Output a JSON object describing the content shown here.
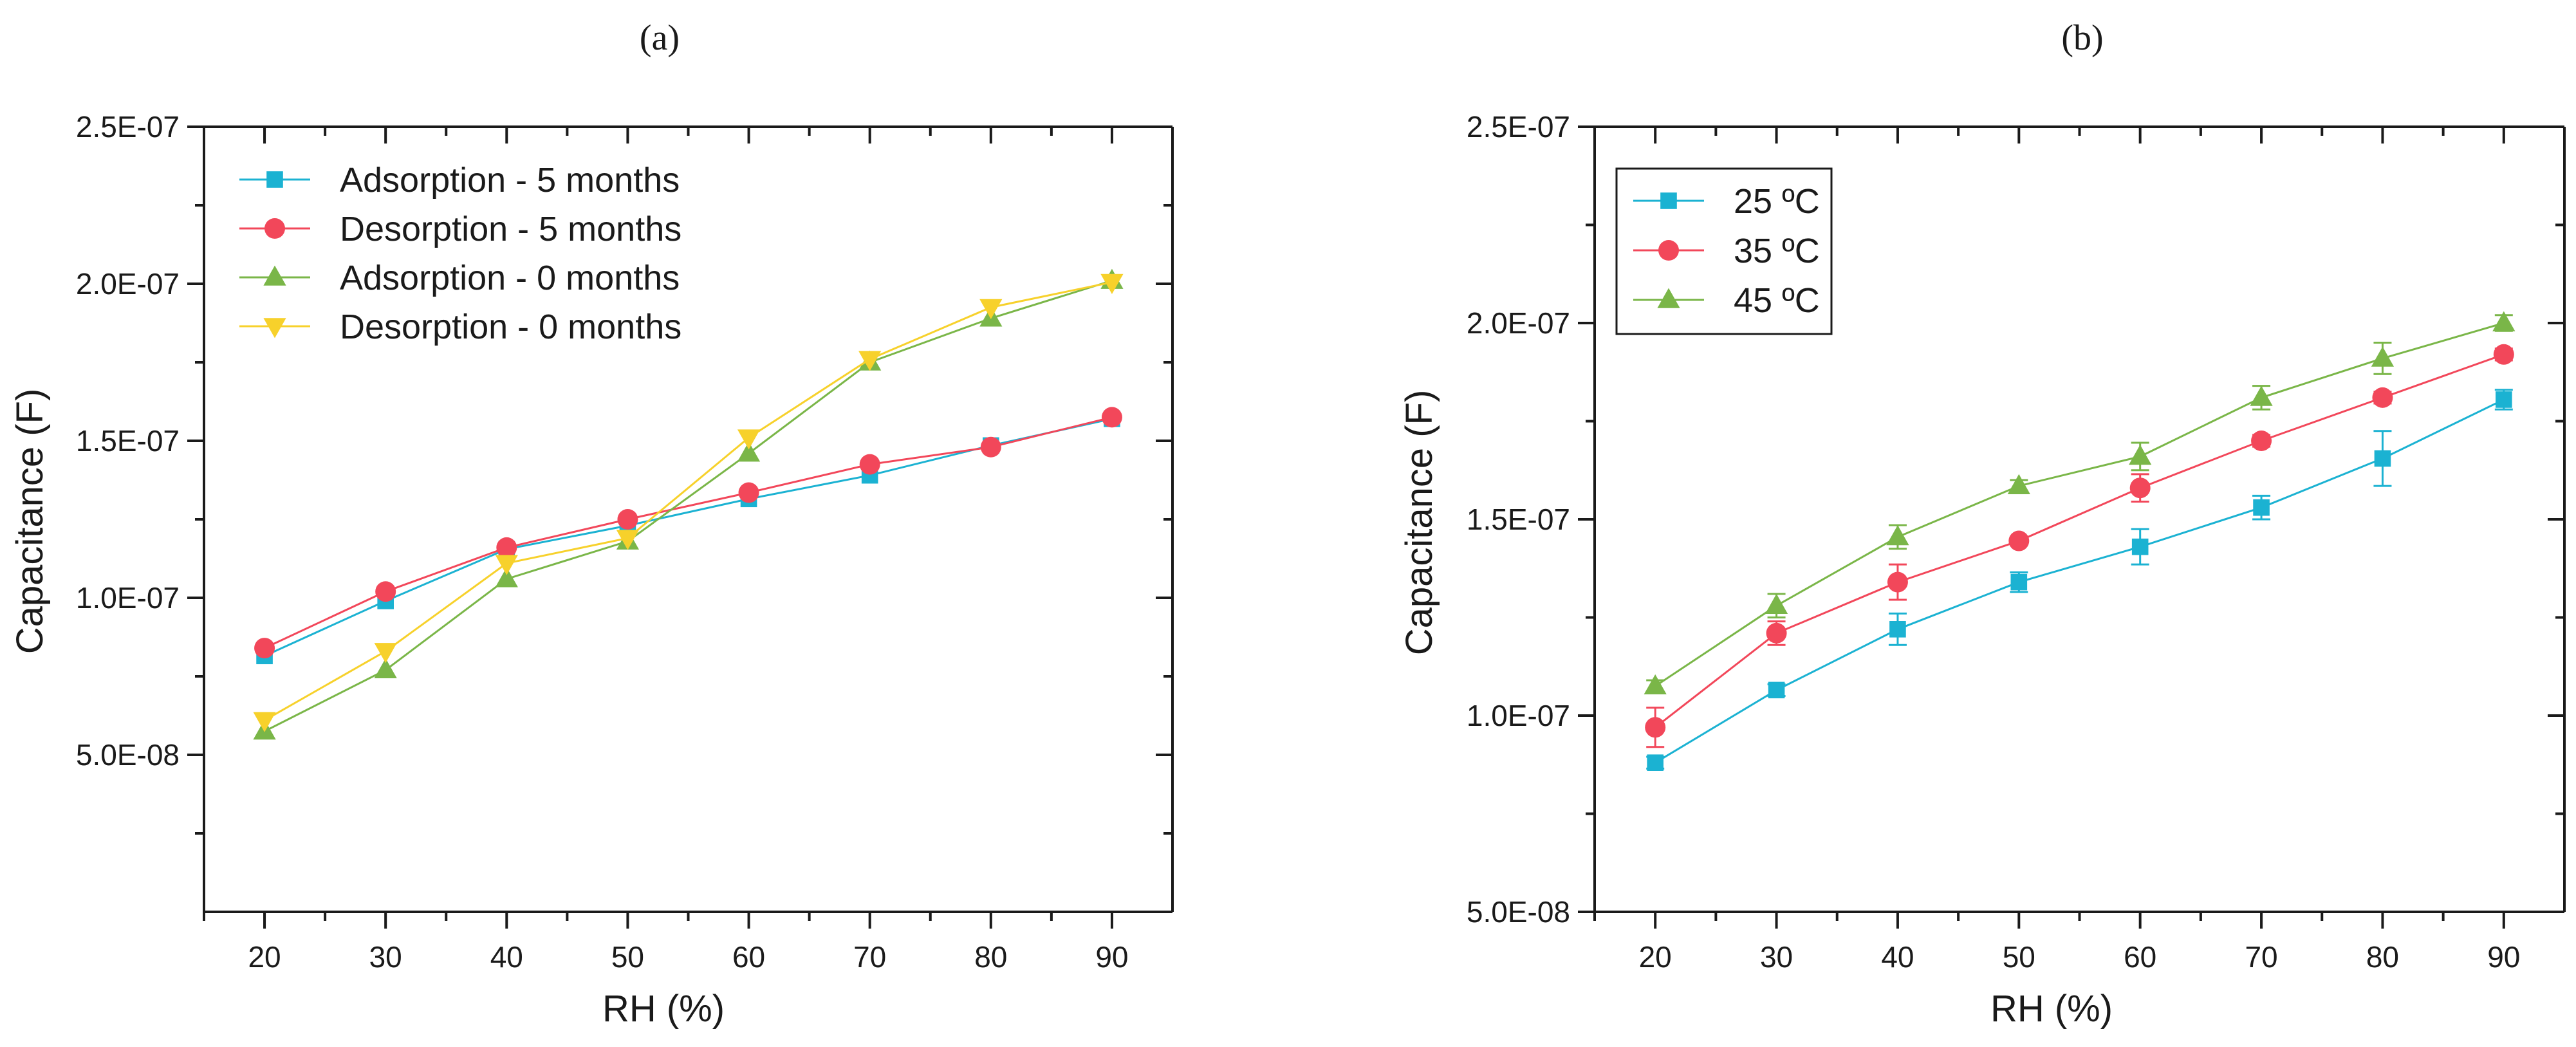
{
  "chart_data": [
    {
      "type": "line",
      "panel_label": "(a)",
      "title": "",
      "xlabel": "RH (%)",
      "ylabel": "Capacitance (F)",
      "xlim": [
        15,
        95
      ],
      "ylim": [
        0,
        2.5e-07
      ],
      "x_ticks": [
        20,
        30,
        40,
        50,
        60,
        70,
        80,
        90
      ],
      "x_tick_labels": [
        "20",
        "30",
        "40",
        "50",
        "60",
        "70",
        "80",
        "90"
      ],
      "y_ticks": [
        5e-08,
        1e-07,
        1.5e-07,
        2e-07,
        2.5e-07
      ],
      "y_tick_labels": [
        "5.0E-08",
        "1.0E-07",
        "1.5E-07",
        "2.0E-07",
        "2.5E-07"
      ],
      "grid": false,
      "legend": {
        "placement": "top-left",
        "boxed": false
      },
      "x": [
        20,
        30,
        40,
        50,
        60,
        70,
        80,
        90
      ],
      "series": [
        {
          "name": "Adsorption - 5 months",
          "color": "#1bb2d2",
          "marker": "square",
          "values": [
            8.15e-08,
            9.9e-08,
            1.155e-07,
            1.23e-07,
            1.315e-07,
            1.39e-07,
            1.485e-07,
            1.57e-07
          ]
        },
        {
          "name": "Desorption - 5 months",
          "color": "#f2475a",
          "marker": "circle",
          "values": [
            8.4e-08,
            1.02e-07,
            1.16e-07,
            1.25e-07,
            1.335e-07,
            1.425e-07,
            1.48e-07,
            1.575e-07
          ]
        },
        {
          "name": "Adsorption - 0 months",
          "color": "#7ab648",
          "marker": "triangle-up",
          "values": [
            5.75e-08,
            7.7e-08,
            1.06e-07,
            1.18e-07,
            1.46e-07,
            1.75e-07,
            1.89e-07,
            2.01e-07
          ]
        },
        {
          "name": "Desorption - 0 months",
          "color": "#f7d12b",
          "marker": "triangle-down",
          "values": [
            6.1e-08,
            8.3e-08,
            1.11e-07,
            1.19e-07,
            1.51e-07,
            1.76e-07,
            1.925e-07,
            2.005e-07
          ]
        }
      ]
    },
    {
      "type": "line",
      "panel_label": "(b)",
      "title": "",
      "xlabel": "RH (%)",
      "ylabel": "Capacitance (F)",
      "xlim": [
        15,
        95
      ],
      "ylim": [
        5e-08,
        2.5e-07
      ],
      "x_ticks": [
        20,
        30,
        40,
        50,
        60,
        70,
        80,
        90
      ],
      "x_tick_labels": [
        "20",
        "30",
        "40",
        "50",
        "60",
        "70",
        "80",
        "90"
      ],
      "y_ticks": [
        5e-08,
        1e-07,
        1.5e-07,
        2e-07,
        2.5e-07
      ],
      "y_tick_labels": [
        "5.0E-08",
        "1.0E-07",
        "1.5E-07",
        "2.0E-07",
        "2.5E-07"
      ],
      "grid": false,
      "legend": {
        "placement": "top-left",
        "boxed": true
      },
      "x": [
        20,
        30,
        40,
        50,
        60,
        70,
        80,
        90
      ],
      "series": [
        {
          "name": "25 ºC",
          "color": "#1bb2d2",
          "marker": "square",
          "values": [
            8.8e-08,
            1.065e-07,
            1.22e-07,
            1.34e-07,
            1.43e-07,
            1.53e-07,
            1.655e-07,
            1.805e-07
          ],
          "errors": [
            1.5e-09,
            1.5e-09,
            4e-09,
            2.5e-09,
            4.5e-09,
            3e-09,
            7e-09,
            2.5e-09
          ]
        },
        {
          "name": "35 ºC",
          "color": "#f2475a",
          "marker": "circle",
          "values": [
            9.7e-08,
            1.21e-07,
            1.34e-07,
            1.445e-07,
            1.58e-07,
            1.7e-07,
            1.81e-07,
            1.92e-07
          ],
          "errors": [
            5e-09,
            3e-09,
            4.5e-09,
            1e-09,
            3.5e-09,
            1.5e-09,
            1.5e-09,
            1.5e-09
          ]
        },
        {
          "name": "45 ºC",
          "color": "#7ab648",
          "marker": "triangle-up",
          "values": [
            1.075e-07,
            1.28e-07,
            1.455e-07,
            1.585e-07,
            1.66e-07,
            1.81e-07,
            1.91e-07,
            2e-07
          ],
          "errors": [
            1.5e-09,
            3e-09,
            3e-09,
            1.5e-09,
            3.5e-09,
            3e-09,
            4e-09,
            2e-09
          ]
        }
      ]
    }
  ]
}
